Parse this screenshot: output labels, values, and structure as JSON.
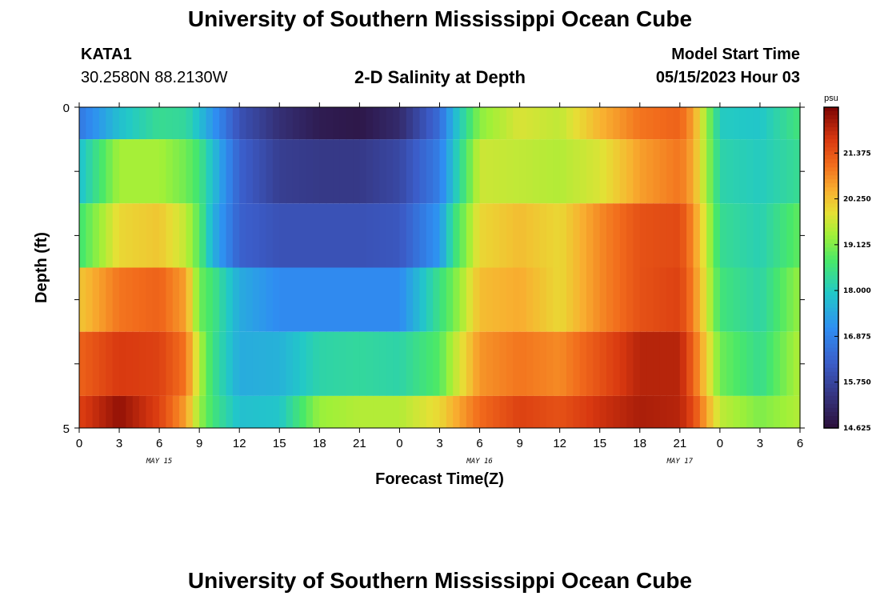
{
  "header": {
    "title": "University of Southern Mississippi Ocean Cube",
    "station": "KATA1",
    "coords": "30.2580N  88.2130W",
    "plot_title": "2-D Salinity at Depth",
    "model_start_label": "Model Start Time",
    "model_start_value": "05/15/2023 Hour 03"
  },
  "footer": {
    "title": "University of Southern Mississippi Ocean Cube"
  },
  "chart_data": {
    "type": "heatmap",
    "title": "2-D Salinity at Depth",
    "xlabel": "Forecast Time(Z)",
    "ylabel": "Depth (ft)",
    "ylim": [
      0,
      5
    ],
    "y_tick_labels": [
      "0",
      "5"
    ],
    "x_tick_labels": [
      "0",
      "3",
      "6",
      "9",
      "12",
      "15",
      "18",
      "21",
      "0",
      "3",
      "6",
      "9",
      "12",
      "15",
      "18",
      "21",
      "0",
      "3",
      "6"
    ],
    "date_labels": [
      "MAY 15",
      "MAY 16",
      "MAY 17"
    ],
    "x_hours_start": 0,
    "x_hours_end": 54,
    "colorbar": {
      "unit": "psu",
      "min": 14.625,
      "max": 22.5,
      "ticks": [
        "21.375",
        "20.250",
        "19.125",
        "18.000",
        "16.875",
        "15.750",
        "14.625"
      ]
    },
    "rows_depth_ft": [
      "0-0.5",
      "0.5-1.5",
      "1.5-2.5",
      "2.5-3.5",
      "3.5-4.5",
      "4.5-5"
    ],
    "keyframes_hours": [
      0,
      3,
      6,
      8,
      9,
      10,
      12,
      15,
      18,
      21,
      24,
      27,
      28,
      30,
      33,
      36,
      39,
      42,
      45,
      46,
      48,
      51,
      54
    ],
    "salinity_rows": [
      [
        16.7,
        17.8,
        18.4,
        18.3,
        17.8,
        17.2,
        16.0,
        15.3,
        14.9,
        14.8,
        15.2,
        16.5,
        17.6,
        19.2,
        19.8,
        19.6,
        20.4,
        21.0,
        21.2,
        20.6,
        18.0,
        17.9,
        18.6
      ],
      [
        17.8,
        19.4,
        19.4,
        19.0,
        18.6,
        17.8,
        16.3,
        15.6,
        15.5,
        15.5,
        15.8,
        16.8,
        17.8,
        19.7,
        19.6,
        19.5,
        19.8,
        20.6,
        21.0,
        20.5,
        18.2,
        18.0,
        18.4
      ],
      [
        18.6,
        20.0,
        20.2,
        19.6,
        18.8,
        17.6,
        16.3,
        16.0,
        16.0,
        16.0,
        16.1,
        17.2,
        18.4,
        20.0,
        20.3,
        20.0,
        20.8,
        21.4,
        21.5,
        20.8,
        18.4,
        18.1,
        18.9
      ],
      [
        20.2,
        21.0,
        21.2,
        20.6,
        19.0,
        18.6,
        17.5,
        17.0,
        17.0,
        17.0,
        17.0,
        18.5,
        19.0,
        20.3,
        20.5,
        20.0,
        20.8,
        21.4,
        21.6,
        20.9,
        18.6,
        18.2,
        19.3
      ],
      [
        21.2,
        21.7,
        21.6,
        21.0,
        19.5,
        18.5,
        17.5,
        17.6,
        18.2,
        18.3,
        18.2,
        18.8,
        19.5,
        20.7,
        21.0,
        20.8,
        21.4,
        22.0,
        22.0,
        21.2,
        19.0,
        18.4,
        19.5
      ],
      [
        21.6,
        22.3,
        21.6,
        20.6,
        19.3,
        18.6,
        17.8,
        17.9,
        19.3,
        19.5,
        19.5,
        20.0,
        20.4,
        21.1,
        21.6,
        21.4,
        21.8,
        22.1,
        22.0,
        21.5,
        19.6,
        19.1,
        19.5
      ]
    ]
  }
}
